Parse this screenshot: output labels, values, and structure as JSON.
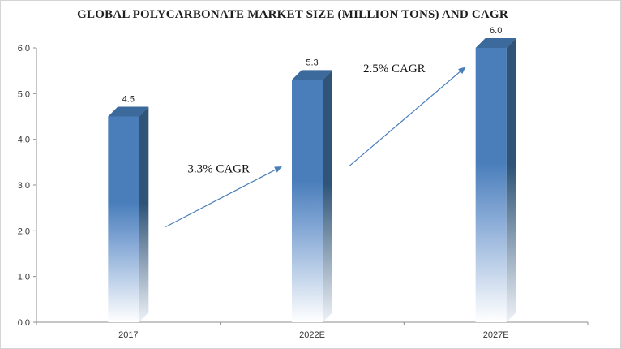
{
  "chart_data": {
    "type": "bar",
    "title": "GLOBAL POLYCARBONATE MARKET SIZE (MILLION TONS) AND CAGR",
    "categories": [
      "2017",
      "2022E",
      "2027E"
    ],
    "values": [
      4.5,
      5.3,
      6.0
    ],
    "data_labels": [
      "4.5",
      "5.3",
      "6.0"
    ],
    "y_ticks": [
      "0.0",
      "1.0",
      "2.0",
      "3.0",
      "4.0",
      "5.0",
      "6.0"
    ],
    "ylim": [
      0,
      6
    ],
    "grid": false,
    "xlabel": "",
    "ylabel": "",
    "bar_color": "#4a7ebb",
    "bar_side_color": "#2f5477",
    "annotations": [
      {
        "text": "3.3% CAGR",
        "from": "2017",
        "to": "2022E"
      },
      {
        "text": "2.5% CAGR",
        "from": "2022E",
        "to": "2027E"
      }
    ]
  }
}
